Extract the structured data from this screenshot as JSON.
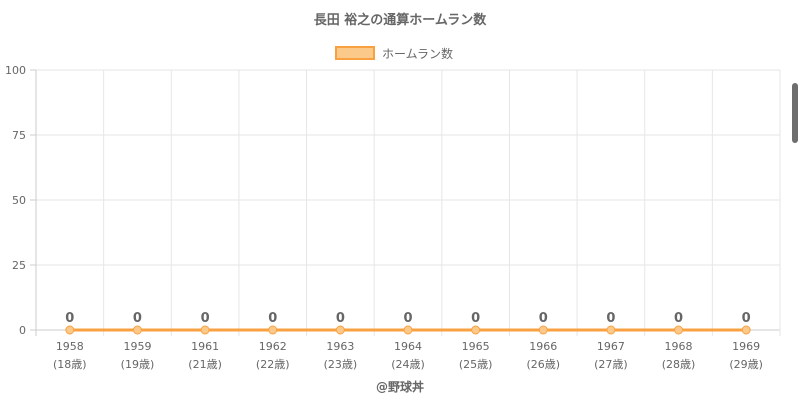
{
  "chart_data": {
    "type": "line",
    "title": "長田 裕之の通算ホームラン数",
    "categories": [
      "1958",
      "1959",
      "1961",
      "1962",
      "1963",
      "1964",
      "1965",
      "1966",
      "1967",
      "1968",
      "1969"
    ],
    "sublabels": [
      "(18歳)",
      "(19歳)",
      "(21歳)",
      "(22歳)",
      "(23歳)",
      "(24歳)",
      "(25歳)",
      "(26歳)",
      "(27歳)",
      "(28歳)",
      "(29歳)"
    ],
    "series": [
      {
        "name": "ホームラン数",
        "values": [
          0,
          0,
          0,
          0,
          0,
          0,
          0,
          0,
          0,
          0,
          0
        ],
        "color": "#f9a040",
        "fill": "#fbc98a"
      }
    ],
    "yticks": [
      0,
      25,
      50,
      75,
      100
    ],
    "ylim": [
      0,
      100
    ],
    "grid": true,
    "legend_position": "top",
    "data_labels": true
  },
  "footer": {
    "credit": "@野球丼"
  }
}
